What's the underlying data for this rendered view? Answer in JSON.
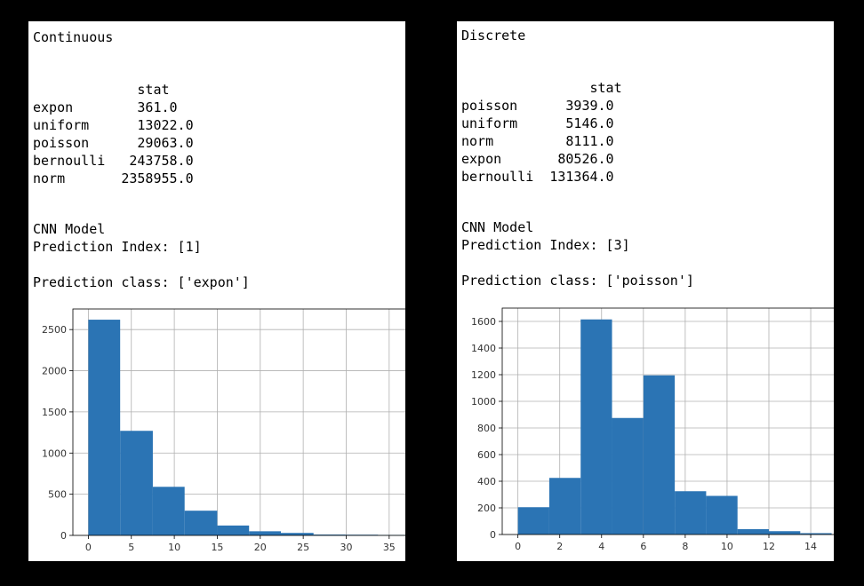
{
  "continuous": {
    "heading": "Continuous",
    "stat_header": "stat",
    "stats": [
      {
        "name": "expon",
        "value": "361.0"
      },
      {
        "name": "uniform",
        "value": "13022.0"
      },
      {
        "name": "poisson",
        "value": "29063.0"
      },
      {
        "name": "bernoulli",
        "value": "243758.0"
      },
      {
        "name": "norm",
        "value": "2358955.0"
      }
    ],
    "model_label": "CNN Model",
    "prediction_index": "Prediction Index: [1]",
    "prediction_class": "Prediction class: ['expon']"
  },
  "discrete": {
    "heading": "Discrete",
    "stat_header": "stat",
    "stats": [
      {
        "name": "poisson",
        "value": "3939.0"
      },
      {
        "name": "uniform",
        "value": "5146.0"
      },
      {
        "name": "norm",
        "value": "8111.0"
      },
      {
        "name": "expon",
        "value": "80526.0"
      },
      {
        "name": "bernoulli",
        "value": "131364.0"
      }
    ],
    "model_label": "CNN Model",
    "prediction_index": "Prediction Index: [3]",
    "prediction_class": "Prediction class: ['poisson']"
  },
  "colors": {
    "bar": "#2b74b4",
    "grid": "#b0b0b0",
    "axis": "#000000",
    "background": "#000000",
    "panel": "#ffffff"
  },
  "chart_data": [
    {
      "type": "bar",
      "title": "",
      "xlabel": "",
      "ylabel": "",
      "grid": true,
      "xlim": [
        -1.8,
        37.5
      ],
      "ylim": [
        0,
        2750
      ],
      "xticks": [
        0,
        5,
        10,
        15,
        20,
        25,
        30,
        35
      ],
      "yticks": [
        0,
        500,
        1000,
        1500,
        2000,
        2500
      ],
      "bins": [
        {
          "x0": 0.0,
          "x1": 3.7,
          "value": 2620
        },
        {
          "x0": 3.7,
          "x1": 7.5,
          "value": 1270
        },
        {
          "x0": 7.5,
          "x1": 11.2,
          "value": 590
        },
        {
          "x0": 11.2,
          "x1": 15.0,
          "value": 300
        },
        {
          "x0": 15.0,
          "x1": 18.7,
          "value": 120
        },
        {
          "x0": 18.7,
          "x1": 22.4,
          "value": 50
        },
        {
          "x0": 22.4,
          "x1": 26.2,
          "value": 30
        },
        {
          "x0": 26.2,
          "x1": 29.9,
          "value": 10
        },
        {
          "x0": 29.9,
          "x1": 33.7,
          "value": 8
        },
        {
          "x0": 33.7,
          "x1": 37.4,
          "value": 5
        }
      ]
    },
    {
      "type": "bar",
      "title": "",
      "xlabel": "",
      "ylabel": "",
      "grid": true,
      "xlim": [
        -0.75,
        15.4
      ],
      "ylim": [
        0,
        1700
      ],
      "xticks": [
        0,
        2,
        4,
        6,
        8,
        10,
        12,
        14
      ],
      "yticks": [
        0,
        200,
        400,
        600,
        800,
        1000,
        1200,
        1400,
        1600
      ],
      "bins": [
        {
          "x0": 0.0,
          "x1": 1.5,
          "value": 205
        },
        {
          "x0": 1.5,
          "x1": 3.0,
          "value": 425
        },
        {
          "x0": 3.0,
          "x1": 4.5,
          "value": 1615
        },
        {
          "x0": 4.5,
          "x1": 6.0,
          "value": 875
        },
        {
          "x0": 6.0,
          "x1": 7.5,
          "value": 1195
        },
        {
          "x0": 7.5,
          "x1": 9.0,
          "value": 325
        },
        {
          "x0": 9.0,
          "x1": 10.5,
          "value": 290
        },
        {
          "x0": 10.5,
          "x1": 12.0,
          "value": 40
        },
        {
          "x0": 12.0,
          "x1": 13.5,
          "value": 25
        },
        {
          "x0": 13.5,
          "x1": 15.0,
          "value": 10
        }
      ]
    }
  ]
}
